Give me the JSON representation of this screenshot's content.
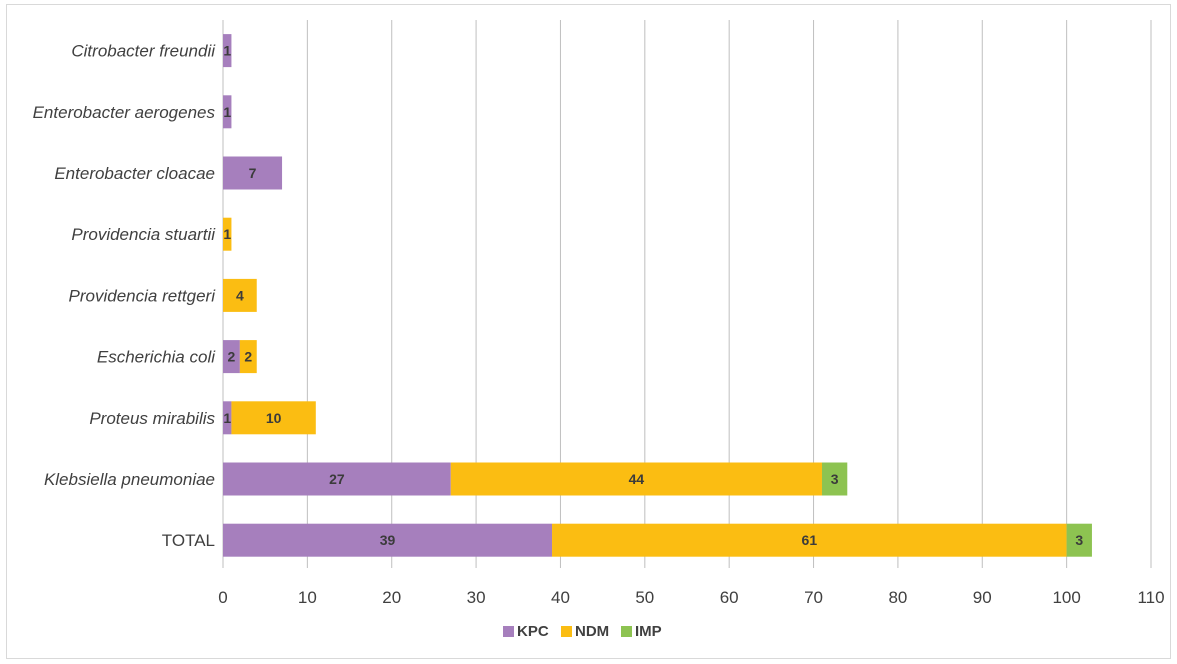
{
  "chart_data": {
    "type": "bar",
    "orientation": "horizontal",
    "stacked": true,
    "categories": [
      "Citrobacter freundii",
      "Enterobacter aerogenes",
      "Enterobacter cloacae",
      "Providencia stuartii",
      "Providencia rettgeri",
      "Escherichia coli",
      "Proteus mirabilis",
      "Klebsiella pneumoniae",
      "TOTAL"
    ],
    "italic_categories": [
      true,
      true,
      true,
      true,
      true,
      true,
      true,
      true,
      false
    ],
    "series": [
      {
        "name": "KPC",
        "color": "#a67fbd",
        "values": [
          1,
          1,
          7,
          0,
          0,
          2,
          1,
          27,
          39
        ]
      },
      {
        "name": "NDM",
        "color": "#fbbd12",
        "values": [
          0,
          0,
          0,
          1,
          4,
          2,
          10,
          44,
          61
        ]
      },
      {
        "name": "IMP",
        "color": "#8dc351",
        "values": [
          0,
          0,
          0,
          0,
          0,
          0,
          0,
          3,
          3
        ]
      }
    ],
    "xlim": [
      0,
      110
    ],
    "x_ticks": [
      0,
      10,
      20,
      30,
      40,
      50,
      60,
      70,
      80,
      90,
      100,
      110
    ],
    "grid": true,
    "gridline_color": "#bfbfbf",
    "legend": "bottom",
    "title": "",
    "xlabel": "",
    "ylabel": ""
  }
}
